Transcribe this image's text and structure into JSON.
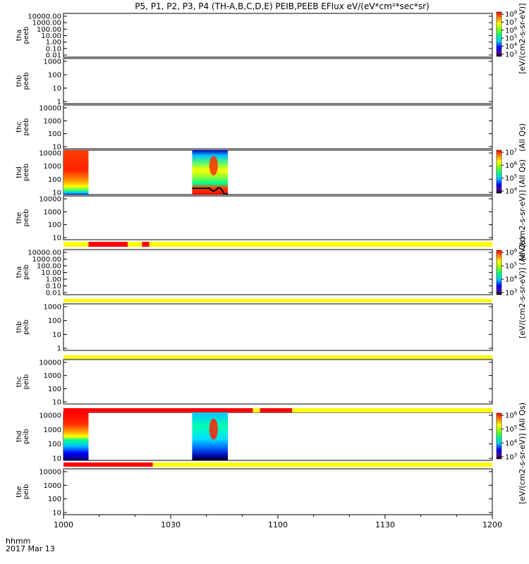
{
  "title": "P5, P1, P2, P3, P4 (TH-A,B,C,D,E) PEIB,PEEB EFlux eV/(eV*cm²*sec*sr)",
  "time_axis": {
    "label_line1": "hhmm",
    "label_line2": "2017 Mar 13",
    "ticks": [
      "1000",
      "1030",
      "1100",
      "1130",
      "1200"
    ]
  },
  "colorbar_labels": {
    "top": "[eV/(cm2-s-sr-eV)] (All Qs)",
    "middle_edge": "(All Qs)",
    "overlap_a": "[eV/(cm2-s-sr-eV)] (All Qs)",
    "overlap_b": "[eV/(cm2-s-sr-eV)] (All Qs)",
    "bottom": "[eV/(cm2-s-sr-eV)] (All Qs)"
  },
  "colors": {
    "quality_good": "#ffff00",
    "quality_bad": "#ff0000"
  },
  "chart_data": {
    "type": "heatmap",
    "x_unit": "hhmm",
    "x_range": [
      "1000",
      "1200"
    ],
    "panels": [
      {
        "probe": "tha",
        "product": "peeb",
        "ylabels": [
          "10000.00",
          "1000.00",
          "100.00",
          "10.00",
          "1.00",
          "0.10",
          "0.01"
        ],
        "has_data": false
      },
      {
        "probe": "thb",
        "product": "peeb",
        "ylabels": [
          "1000",
          "100",
          "10",
          "1"
        ],
        "has_data": false
      },
      {
        "probe": "thc",
        "product": "peeb",
        "ylabels": [
          "10000",
          "1000",
          "100",
          "10"
        ],
        "has_data": false
      },
      {
        "probe": "thd",
        "product": "peeb",
        "ylabels": [
          "10000",
          "1000",
          "100",
          "10"
        ],
        "has_data": true,
        "data_intervals": [
          [
            "1000",
            "1007"
          ],
          [
            "1036",
            "1046"
          ]
        ]
      },
      {
        "probe": "the",
        "product": "peeb",
        "ylabels": [
          "10000",
          "1000",
          "100",
          "10"
        ],
        "has_data": false
      },
      {
        "probe": "tha",
        "product": "peib",
        "ylabels": [
          "10000.00",
          "1000.00",
          "100.00",
          "10.00",
          "1.00",
          "0.10",
          "0.01"
        ],
        "has_data": false
      },
      {
        "probe": "thb",
        "product": "peib",
        "ylabels": [
          "1000",
          "100",
          "10",
          "1"
        ],
        "has_data": false
      },
      {
        "probe": "thc",
        "product": "peib",
        "ylabels": [
          "10000",
          "1000",
          "100",
          "10"
        ],
        "has_data": false
      },
      {
        "probe": "thd",
        "product": "peib",
        "ylabels": [
          "10000",
          "1000",
          "100",
          "10"
        ],
        "has_data": true,
        "data_intervals": [
          [
            "1000",
            "1007"
          ],
          [
            "1036",
            "1046"
          ]
        ]
      },
      {
        "probe": "the",
        "product": "peib",
        "ylabels": [
          "10000",
          "1000",
          "100",
          "10"
        ],
        "has_data": false
      }
    ],
    "colorbars": [
      {
        "panel": "tha peeb",
        "tick_exponents": [
          3,
          4,
          5,
          6,
          7,
          8
        ]
      },
      {
        "panel": "thd peeb",
        "tick_exponents": [
          4,
          5,
          6,
          7
        ]
      },
      {
        "panel": "tha peib",
        "tick_exponents": [
          3,
          4,
          5,
          6
        ]
      },
      {
        "panel": "thd peib",
        "tick_exponents": [
          3,
          4,
          5,
          6
        ]
      }
    ],
    "quality_flags": [
      {
        "after_panel": "the peeb",
        "segments": [
          [
            "1000",
            "1007",
            "good"
          ],
          [
            "1007",
            "1018",
            "bad"
          ],
          [
            "1018",
            "1022",
            "good"
          ],
          [
            "1022",
            "1024",
            "bad"
          ],
          [
            "1024",
            "1200",
            "good"
          ]
        ]
      },
      {
        "after_panel": "tha peib",
        "segments": [
          [
            "1000",
            "1200",
            "good"
          ]
        ]
      },
      {
        "after_panel": "thb peib",
        "segments": [
          [
            "1000",
            "1200",
            "good"
          ]
        ]
      },
      {
        "after_panel": "thc peib",
        "segments": [
          [
            "1000",
            "1053",
            "bad"
          ],
          [
            "1053",
            "1055",
            "good"
          ],
          [
            "1055",
            "1104",
            "bad"
          ],
          [
            "1104",
            "1200",
            "good"
          ]
        ]
      },
      {
        "after_panel": "thd peib",
        "segments": [
          [
            "1000",
            "1025",
            "bad"
          ],
          [
            "1025",
            "1200",
            "good"
          ]
        ]
      }
    ]
  }
}
